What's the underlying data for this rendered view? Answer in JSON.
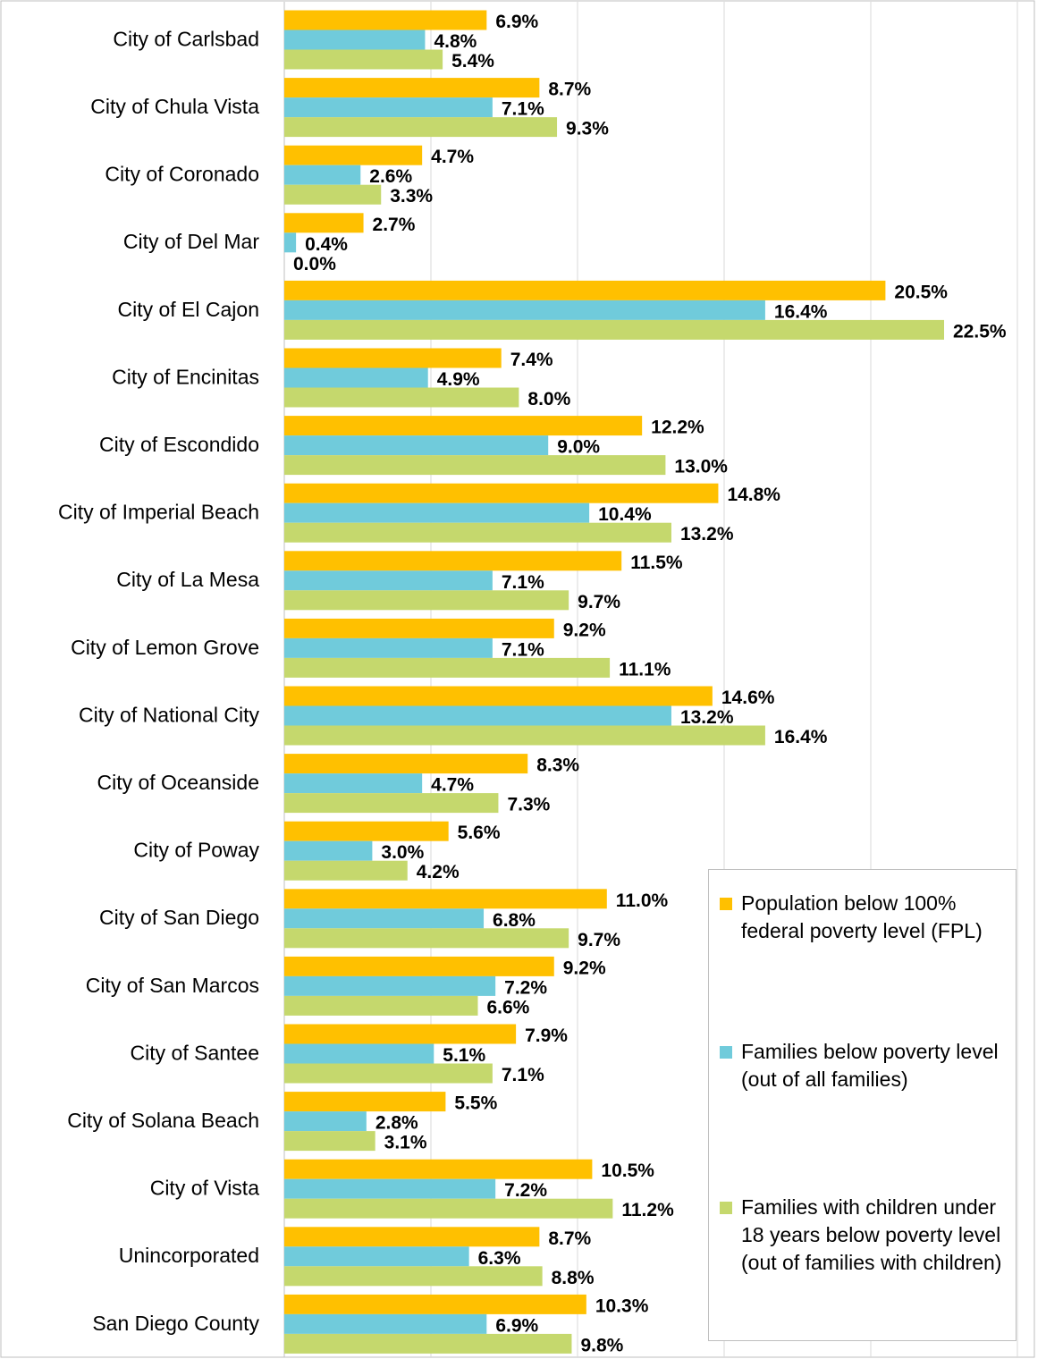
{
  "chart_data": {
    "type": "bar",
    "orientation": "horizontal",
    "categories": [
      "City of Carlsbad",
      "City of Chula Vista",
      "City of Coronado",
      "City of Del Mar",
      "City of El Cajon",
      "City of Encinitas",
      "City of Escondido",
      "City of Imperial Beach",
      "City of La Mesa",
      "City of Lemon Grove",
      "City of National City",
      "City of Oceanside",
      "City of Poway",
      "City of San Diego",
      "City of San Marcos",
      "City of Santee",
      "City of Solana Beach",
      "City of Vista",
      "Unincorporated",
      "San Diego County"
    ],
    "series": [
      {
        "name": "Population below 100% federal poverty level (FPL)",
        "color": "#FFC000",
        "values": [
          6.9,
          8.7,
          4.7,
          2.7,
          20.5,
          7.4,
          12.2,
          14.8,
          11.5,
          9.2,
          14.6,
          8.3,
          5.6,
          11.0,
          9.2,
          7.9,
          5.5,
          10.5,
          8.7,
          10.3
        ],
        "value_labels": [
          "6.9%",
          "8.7%",
          "4.7%",
          "2.7%",
          "20.5%",
          "7.4%",
          "12.2%",
          "14.8%",
          "11.5%",
          "9.2%",
          "14.6%",
          "8.3%",
          "5.6%",
          "11.0%",
          "9.2%",
          "7.9%",
          "5.5%",
          "10.5%",
          "8.7%",
          "10.3%"
        ]
      },
      {
        "name": "Families below poverty level (out of all families)",
        "color": "#70CBDB",
        "values": [
          4.8,
          7.1,
          2.6,
          0.4,
          16.4,
          4.9,
          9.0,
          10.4,
          7.1,
          7.1,
          13.2,
          4.7,
          3.0,
          6.8,
          7.2,
          5.1,
          2.8,
          7.2,
          6.3,
          6.9
        ],
        "value_labels": [
          "4.8%",
          "7.1%",
          "2.6%",
          "0.4%",
          "16.4%",
          "4.9%",
          "9.0%",
          "10.4%",
          "7.1%",
          "7.1%",
          "13.2%",
          "4.7%",
          "3.0%",
          "6.8%",
          "7.2%",
          "5.1%",
          "2.8%",
          "7.2%",
          "6.3%",
          "6.9%"
        ]
      },
      {
        "name": "Families with children under 18 years below poverty level (out of families with children)",
        "color": "#C5D86D",
        "values": [
          5.4,
          9.3,
          3.3,
          0.0,
          22.5,
          8.0,
          13.0,
          13.2,
          9.7,
          11.1,
          16.4,
          7.3,
          4.2,
          9.7,
          6.6,
          7.1,
          3.1,
          11.2,
          8.8,
          9.8
        ],
        "value_labels": [
          "5.4%",
          "9.3%",
          "3.3%",
          "0.0%",
          "22.5%",
          "8.0%",
          "13.0%",
          "13.2%",
          "9.7%",
          "11.1%",
          "16.4%",
          "7.3%",
          "4.2%",
          "9.7%",
          "6.6%",
          "7.1%",
          "3.1%",
          "11.2%",
          "8.8%",
          "9.8%"
        ]
      }
    ],
    "xlim": [
      0,
      25
    ],
    "xticks": [
      0,
      5,
      10,
      15,
      20,
      25
    ],
    "grid": true,
    "legend": "lower right"
  }
}
